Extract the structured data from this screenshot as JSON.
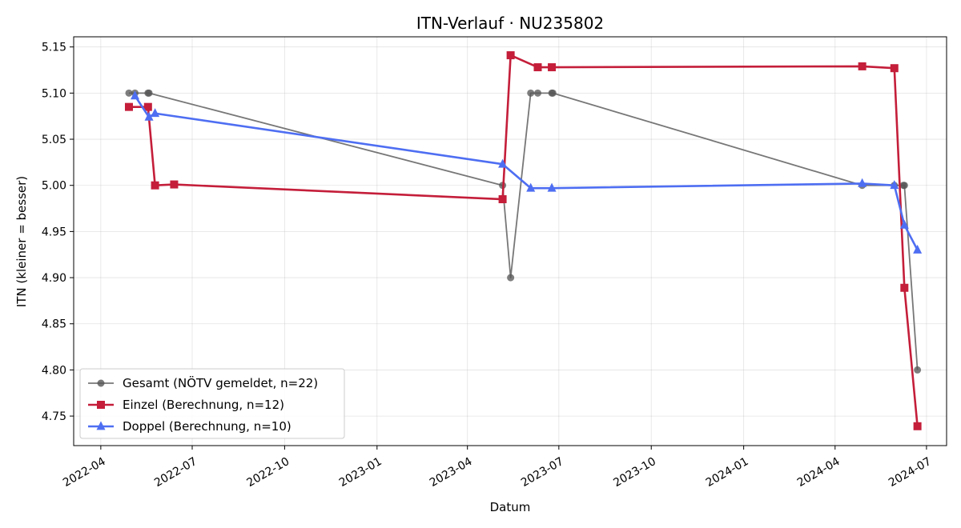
{
  "chart_data": {
    "type": "line",
    "title": "ITN-Verlauf · NU235802",
    "xlabel": "Datum",
    "ylabel": "ITN  (kleiner = besser)",
    "xlim": [
      "2022-03-05",
      "2024-07-21"
    ],
    "ylim": [
      4.718,
      5.161
    ],
    "grid": true,
    "legend_position": "lower-left",
    "x_ticks": [
      "2022-04",
      "2022-07",
      "2022-10",
      "2023-01",
      "2023-04",
      "2023-07",
      "2023-10",
      "2024-01",
      "2024-04",
      "2024-07"
    ],
    "x_tick_dates": [
      "2022-04-01",
      "2022-07-01",
      "2022-10-01",
      "2023-01-01",
      "2023-04-01",
      "2023-07-01",
      "2023-10-01",
      "2024-01-01",
      "2024-04-01",
      "2024-07-01"
    ],
    "y_ticks": [
      "4.75",
      "4.80",
      "4.85",
      "4.90",
      "4.95",
      "5.00",
      "5.05",
      "5.10",
      "5.15"
    ],
    "y_tick_values": [
      4.75,
      4.8,
      4.85,
      4.9,
      4.95,
      5.0,
      5.05,
      5.1,
      5.15
    ],
    "series": [
      {
        "name": "Gesamt (NÖTV gemeldet, n=22)",
        "color": "#555555",
        "marker": "circle",
        "points": [
          {
            "x": "2022-04-29",
            "y": 5.1
          },
          {
            "x": "2022-05-05",
            "y": 5.1
          },
          {
            "x": "2022-05-18",
            "y": 5.1
          },
          {
            "x": "2022-05-19",
            "y": 5.1
          },
          {
            "x": "2023-05-06",
            "y": 5.0
          },
          {
            "x": "2023-05-14",
            "y": 4.9
          },
          {
            "x": "2023-06-03",
            "y": 5.1
          },
          {
            "x": "2023-06-10",
            "y": 5.1
          },
          {
            "x": "2023-06-24",
            "y": 5.1
          },
          {
            "x": "2023-06-25",
            "y": 5.1
          },
          {
            "x": "2024-04-28",
            "y": 5.0
          },
          {
            "x": "2024-05-30",
            "y": 5.0
          },
          {
            "x": "2024-06-08",
            "y": 5.0
          },
          {
            "x": "2024-06-09",
            "y": 5.0
          },
          {
            "x": "2024-06-22",
            "y": 4.8
          }
        ]
      },
      {
        "name": "Einzel (Berechnung, n=12)",
        "color": "#c41e3a",
        "marker": "square",
        "points": [
          {
            "x": "2022-04-29",
            "y": 5.085
          },
          {
            "x": "2022-05-18",
            "y": 5.085
          },
          {
            "x": "2022-05-25",
            "y": 5.0
          },
          {
            "x": "2022-06-13",
            "y": 5.001
          },
          {
            "x": "2023-05-06",
            "y": 4.985
          },
          {
            "x": "2023-05-14",
            "y": 5.141
          },
          {
            "x": "2023-06-10",
            "y": 5.128
          },
          {
            "x": "2023-06-24",
            "y": 5.128
          },
          {
            "x": "2024-04-28",
            "y": 5.129
          },
          {
            "x": "2024-05-30",
            "y": 5.127
          },
          {
            "x": "2024-06-09",
            "y": 4.889
          },
          {
            "x": "2024-06-22",
            "y": 4.739
          }
        ]
      },
      {
        "name": "Doppel (Berechnung, n=10)",
        "color": "#4e6ef2",
        "marker": "triangle",
        "points": [
          {
            "x": "2022-05-05",
            "y": 5.097
          },
          {
            "x": "2022-05-19",
            "y": 5.074
          },
          {
            "x": "2022-05-25",
            "y": 5.078
          },
          {
            "x": "2023-05-06",
            "y": 5.023
          },
          {
            "x": "2023-06-03",
            "y": 4.997
          },
          {
            "x": "2023-06-24",
            "y": 4.997
          },
          {
            "x": "2024-04-28",
            "y": 5.002
          },
          {
            "x": "2024-05-30",
            "y": 5.0
          },
          {
            "x": "2024-06-09",
            "y": 4.957
          },
          {
            "x": "2024-06-22",
            "y": 4.93
          }
        ]
      }
    ]
  }
}
